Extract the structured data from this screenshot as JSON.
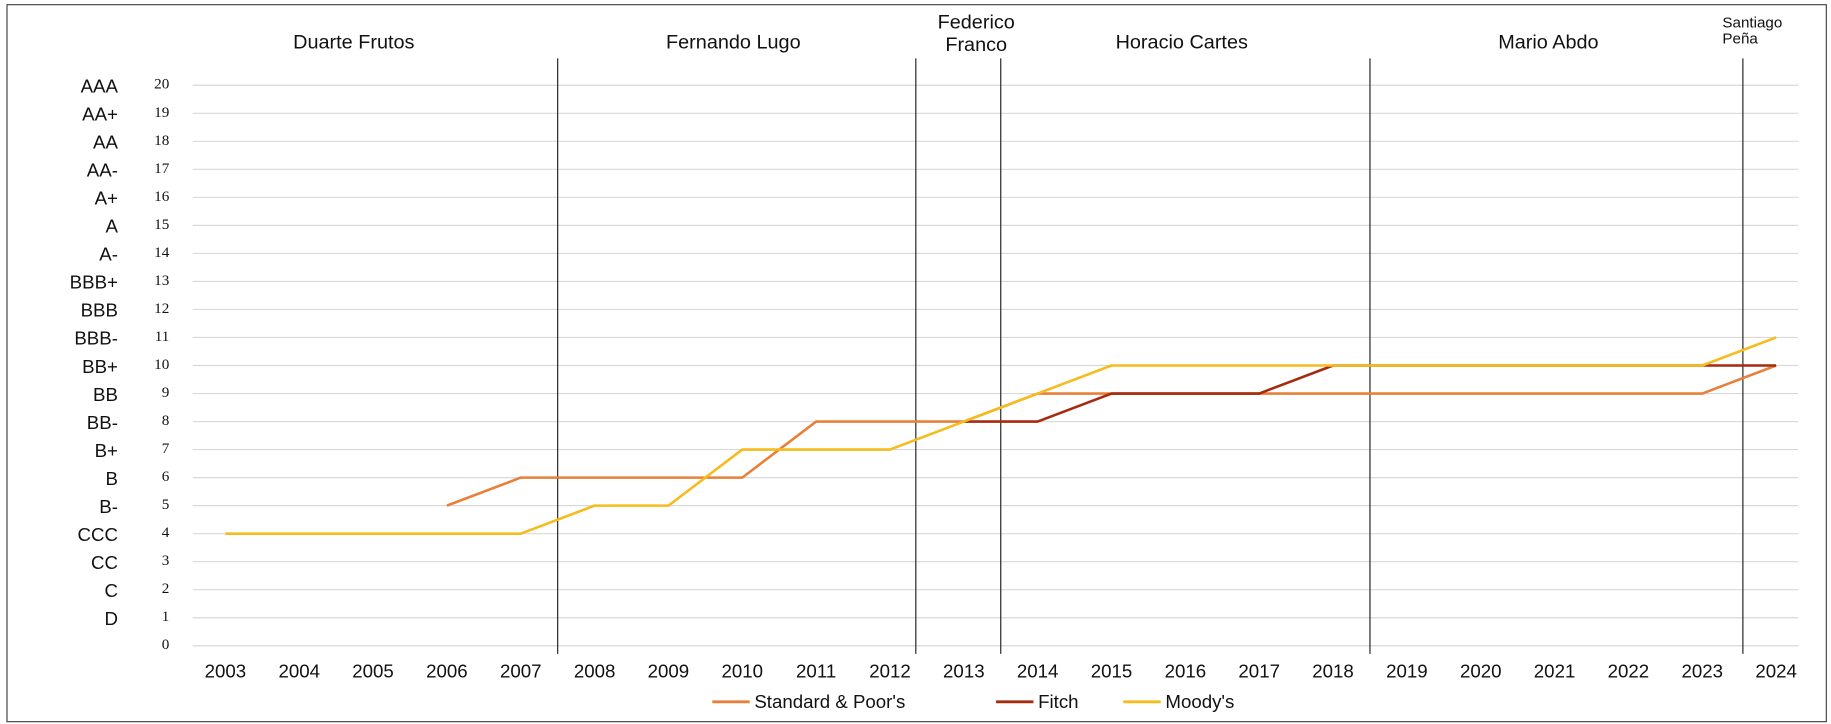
{
  "chart_data": {
    "type": "line",
    "categories": [
      "2003",
      "2004",
      "2005",
      "2006",
      "2007",
      "2008",
      "2009",
      "2010",
      "2011",
      "2012",
      "2013",
      "2014",
      "2015",
      "2016",
      "2017",
      "2018",
      "2019",
      "2020",
      "2021",
      "2022",
      "2023",
      "2024"
    ],
    "series": [
      {
        "name": "Standard & Poor's",
        "color": "#e8803a",
        "values": [
          null,
          null,
          null,
          5,
          6,
          6,
          6,
          6,
          8,
          8,
          8,
          9,
          9,
          9,
          9,
          9,
          9,
          9,
          9,
          9,
          9,
          10
        ]
      },
      {
        "name": "Fitch",
        "color": "#a52a0e",
        "values": [
          null,
          null,
          null,
          null,
          null,
          null,
          null,
          null,
          null,
          null,
          8,
          8,
          9,
          9,
          9,
          10,
          10,
          10,
          10,
          10,
          10,
          10
        ]
      },
      {
        "name": "Moody's",
        "color": "#f5bc1c",
        "values": [
          4,
          4,
          4,
          4,
          4,
          5,
          5,
          7,
          7,
          7,
          8,
          9,
          10,
          10,
          10,
          10,
          10,
          10,
          10,
          10,
          10,
          11
        ]
      }
    ],
    "ylim": [
      0,
      20
    ],
    "yticks": [
      0,
      1,
      2,
      3,
      4,
      5,
      6,
      7,
      8,
      9,
      10,
      11,
      12,
      13,
      14,
      15,
      16,
      17,
      18,
      19,
      20
    ],
    "rating_labels": [
      null,
      "D",
      "C",
      "CC",
      "CCC",
      "B-",
      "B",
      "B+",
      "BB-",
      "BB",
      "BB+",
      "BBB-",
      "BBB",
      "BBB+",
      "A-",
      "A",
      "A+",
      "AA-",
      "AA",
      "AA+",
      "AAA"
    ],
    "grid": true,
    "legend": "bottom",
    "periods": [
      {
        "lines": [
          "Duarte Frutos"
        ]
      },
      {
        "lines": [
          "Fernando Lugo"
        ]
      },
      {
        "lines": [
          "Federico",
          "Franco"
        ]
      },
      {
        "lines": [
          "Horacio Cartes"
        ]
      },
      {
        "lines": [
          "Mario Abdo"
        ]
      },
      {
        "lines": [
          "Santiago",
          "Peña"
        ]
      }
    ]
  }
}
